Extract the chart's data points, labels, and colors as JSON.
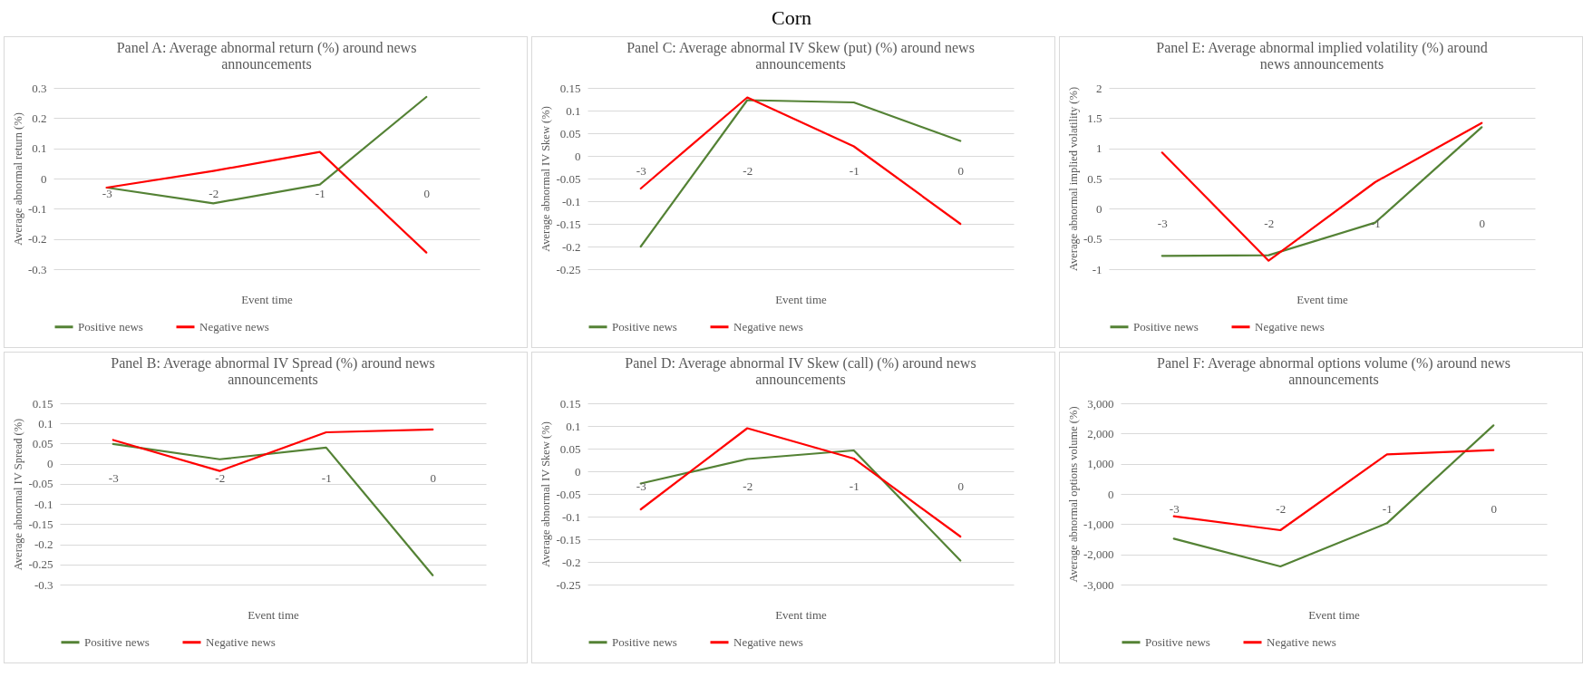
{
  "chart_data": [
    {
      "type": "line",
      "annotations": [
        "Corn"
      ],
      "title": "Panel A: Average abnormal return (%) around news announcements",
      "xlabel": "Event time",
      "ylabel": "Average abnormal return (%)",
      "categories": [
        "-3",
        "-2",
        "-1",
        "0"
      ],
      "series": [
        {
          "name": "Positive news",
          "color": "#548235",
          "values": [
            -0.03,
            -0.082,
            -0.02,
            0.27
          ]
        },
        {
          "name": "Negative news",
          "color": "#ff0000",
          "values": [
            -0.03,
            0.025,
            0.088,
            -0.245
          ]
        }
      ],
      "ylim": [
        -0.3,
        0.3
      ],
      "yticks": [
        -0.3,
        -0.2,
        -0.1,
        0,
        0.1,
        0.2,
        0.3
      ],
      "grid": "y",
      "legend": "bottom"
    },
    {
      "type": "line",
      "title": "Panel C: Average abnormal IV Skew (put) (%) around news announcements",
      "xlabel": "Event time",
      "ylabel": "Average abnormal IV Skew (%)",
      "categories": [
        "-3",
        "-2",
        "-1",
        "0"
      ],
      "series": [
        {
          "name": "Positive news",
          "color": "#548235",
          "values": [
            -0.2,
            0.123,
            0.118,
            0.033
          ]
        },
        {
          "name": "Negative news",
          "color": "#ff0000",
          "values": [
            -0.072,
            0.129,
            0.021,
            -0.15
          ]
        }
      ],
      "ylim": [
        -0.25,
        0.15
      ],
      "yticks": [
        -0.25,
        -0.2,
        -0.15,
        -0.1,
        -0.05,
        0,
        0.05,
        0.1,
        0.15
      ],
      "grid": "y",
      "legend": "bottom"
    },
    {
      "type": "line",
      "title": "Panel E: Average abnormal implied volatility (%) around news announcements",
      "xlabel": "Event time",
      "ylabel": "Average abnormal implied  volatility  (%)",
      "categories": [
        "-3",
        "-2",
        "-1",
        "0"
      ],
      "series": [
        {
          "name": "Positive news",
          "color": "#548235",
          "values": [
            -0.78,
            -0.77,
            -0.23,
            1.35
          ]
        },
        {
          "name": "Negative news",
          "color": "#ff0000",
          "values": [
            0.93,
            -0.86,
            0.44,
            1.42
          ]
        }
      ],
      "ylim": [
        -1,
        2
      ],
      "yticks": [
        -1,
        -0.5,
        0,
        0.5,
        1,
        1.5,
        2
      ],
      "grid": "y",
      "legend": "bottom"
    },
    {
      "type": "line",
      "title": "Panel B: Average abnormal IV Spread (%) around news announcements",
      "xlabel": "Event time",
      "ylabel": "Average abnormal IV Spread (%)",
      "categories": [
        "-3",
        "-2",
        "-1",
        "0"
      ],
      "series": [
        {
          "name": "Positive news",
          "color": "#548235",
          "values": [
            0.049,
            0.011,
            0.04,
            -0.277
          ]
        },
        {
          "name": "Negative news",
          "color": "#ff0000",
          "values": [
            0.059,
            -0.018,
            0.078,
            0.085
          ]
        }
      ],
      "ylim": [
        -0.3,
        0.15
      ],
      "yticks": [
        -0.3,
        -0.25,
        -0.2,
        -0.15,
        -0.1,
        -0.05,
        0,
        0.05,
        0.1,
        0.15
      ],
      "grid": "y",
      "legend": "bottom"
    },
    {
      "type": "line",
      "title": "Panel D: Average abnormal IV Skew (call) (%) around news announcements",
      "xlabel": "Event time",
      "ylabel": "Average abnormal IV Skew (%)",
      "categories": [
        "-3",
        "-2",
        "-1",
        "0"
      ],
      "series": [
        {
          "name": "Positive news",
          "color": "#548235",
          "values": [
            -0.027,
            0.027,
            0.046,
            -0.197
          ]
        },
        {
          "name": "Negative news",
          "color": "#ff0000",
          "values": [
            -0.084,
            0.095,
            0.028,
            -0.144
          ]
        }
      ],
      "ylim": [
        -0.25,
        0.15
      ],
      "yticks": [
        -0.25,
        -0.2,
        -0.15,
        -0.1,
        -0.05,
        0,
        0.05,
        0.1,
        0.15
      ],
      "grid": "y",
      "legend": "bottom"
    },
    {
      "type": "line",
      "title": "Panel F: Average abnormal options volume (%) around news announcements",
      "xlabel": "Event time",
      "ylabel": "Average abnormal options volume (%)",
      "categories": [
        "-3",
        "-2",
        "-1",
        "0"
      ],
      "series": [
        {
          "name": "Positive news",
          "color": "#548235",
          "values": [
            -1480,
            -2400,
            -970,
            2270
          ]
        },
        {
          "name": "Negative news",
          "color": "#ff0000",
          "values": [
            -740,
            -1200,
            1310,
            1450
          ]
        }
      ],
      "ylim": [
        -3000,
        3000
      ],
      "yticks": [
        {
          "value": -3000,
          "label": "-3,000"
        },
        {
          "value": -2000,
          "label": "-2,000"
        },
        {
          "value": -1000,
          "label": "-1,000"
        },
        0,
        {
          "value": 1000,
          "label": "1,000"
        },
        {
          "value": 2000,
          "label": "2,000"
        },
        {
          "value": 3000,
          "label": "3,000"
        }
      ],
      "grid": "y",
      "legend": "bottom"
    }
  ]
}
